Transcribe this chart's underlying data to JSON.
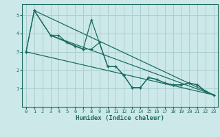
{
  "xlabel": "Humidex (Indice chaleur)",
  "background_color": "#cce8e8",
  "grid_color": "#aacfcf",
  "line_color": "#1a6b60",
  "xlim": [
    -0.5,
    23.5
  ],
  "ylim": [
    0,
    5.6
  ],
  "yticks": [
    1,
    2,
    3,
    4,
    5
  ],
  "xticks": [
    0,
    1,
    2,
    3,
    4,
    5,
    6,
    7,
    8,
    9,
    10,
    11,
    12,
    13,
    14,
    15,
    16,
    17,
    18,
    19,
    20,
    21,
    22,
    23
  ],
  "series_zigzag1": {
    "x": [
      0,
      1,
      3,
      7,
      8,
      10,
      11,
      12,
      13,
      14,
      15,
      16,
      17,
      18,
      19,
      20,
      21,
      22,
      23
    ],
    "y": [
      3.0,
      5.25,
      3.9,
      3.15,
      4.75,
      2.2,
      2.2,
      1.7,
      1.05,
      1.05,
      1.6,
      1.5,
      1.3,
      1.2,
      1.2,
      1.3,
      1.2,
      0.85,
      0.65
    ]
  },
  "series_zigzag2": {
    "x": [
      0,
      1,
      3,
      4,
      5,
      6,
      7,
      8,
      9,
      10,
      11,
      12,
      13,
      14,
      15,
      16,
      17,
      18,
      19,
      20,
      21,
      22,
      23
    ],
    "y": [
      3.0,
      5.25,
      3.9,
      3.9,
      3.5,
      3.3,
      3.15,
      3.15,
      3.5,
      2.2,
      2.2,
      1.7,
      1.05,
      1.05,
      1.6,
      1.5,
      1.3,
      1.2,
      1.2,
      1.3,
      1.2,
      0.85,
      0.65
    ]
  },
  "series_lines": [
    {
      "x": [
        0,
        23
      ],
      "y": [
        3.0,
        0.65
      ]
    },
    {
      "x": [
        1,
        23
      ],
      "y": [
        5.25,
        0.65
      ]
    },
    {
      "x": [
        3,
        23
      ],
      "y": [
        3.9,
        0.65
      ]
    }
  ]
}
